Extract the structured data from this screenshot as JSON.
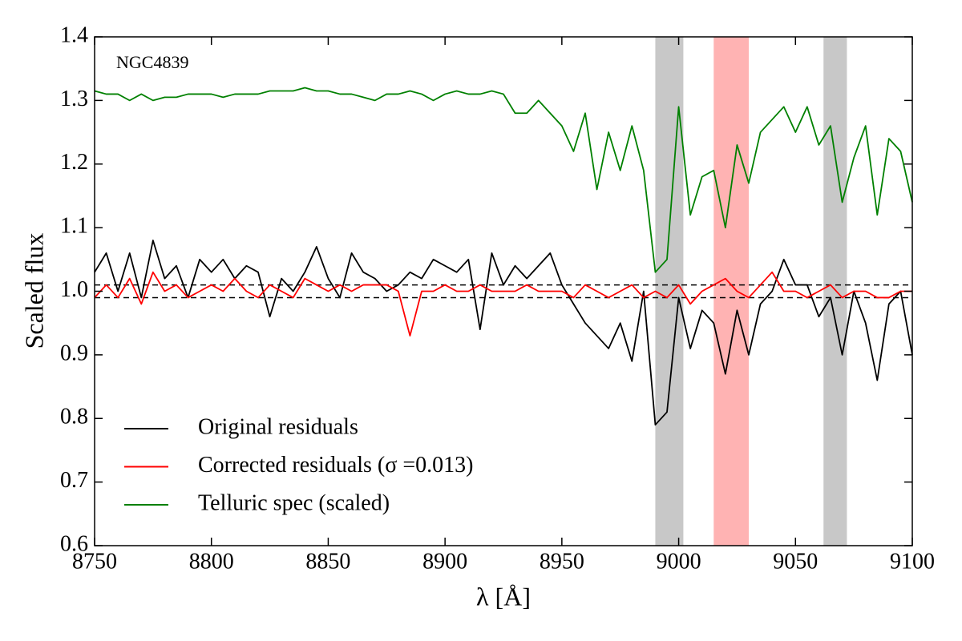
{
  "chart_data": {
    "type": "line",
    "annotation": "NGC4839",
    "xlabel": "λ [Å]",
    "ylabel": "Scaled flux",
    "x": [
      8750,
      8755,
      8760,
      8765,
      8770,
      8775,
      8780,
      8785,
      8790,
      8795,
      8800,
      8805,
      8810,
      8815,
      8820,
      8825,
      8830,
      8835,
      8840,
      8845,
      8850,
      8855,
      8860,
      8865,
      8870,
      8875,
      8880,
      8885,
      8890,
      8895,
      8900,
      8905,
      8910,
      8915,
      8920,
      8925,
      8930,
      8935,
      8940,
      8945,
      8950,
      8955,
      8960,
      8965,
      8970,
      8975,
      8980,
      8985,
      8990,
      8995,
      9000,
      9005,
      9010,
      9015,
      9020,
      9025,
      9030,
      9035,
      9040,
      9045,
      9050,
      9055,
      9060,
      9065,
      9070,
      9075,
      9080,
      9085,
      9090,
      9095,
      9100
    ],
    "series": [
      {
        "name": "Original residuals",
        "color": "#000000",
        "values": [
          1.03,
          1.06,
          1.0,
          1.06,
          0.99,
          1.08,
          1.02,
          1.04,
          0.99,
          1.05,
          1.03,
          1.05,
          1.02,
          1.04,
          1.03,
          0.96,
          1.02,
          1.0,
          1.03,
          1.07,
          1.02,
          0.99,
          1.06,
          1.03,
          1.02,
          1.0,
          1.01,
          1.03,
          1.02,
          1.05,
          1.04,
          1.03,
          1.05,
          0.94,
          1.06,
          1.01,
          1.04,
          1.02,
          1.04,
          1.06,
          1.01,
          0.98,
          0.95,
          0.93,
          0.91,
          0.95,
          0.89,
          1.0,
          0.79,
          0.81,
          0.99,
          0.91,
          0.97,
          0.95,
          0.87,
          0.97,
          0.9,
          0.98,
          1.0,
          1.05,
          1.01,
          1.01,
          0.96,
          0.99,
          0.9,
          1.0,
          0.95,
          0.86,
          0.98,
          1.0,
          0.9
        ]
      },
      {
        "name": "Corrected residuals (σ =0.013)",
        "color": "#ff0000",
        "values": [
          0.99,
          1.01,
          0.99,
          1.02,
          0.98,
          1.03,
          1.0,
          1.01,
          0.99,
          1.0,
          1.01,
          1.0,
          1.02,
          1.0,
          0.99,
          1.01,
          1.0,
          0.99,
          1.02,
          1.01,
          1.0,
          1.01,
          1.0,
          1.01,
          1.01,
          1.01,
          1.0,
          0.93,
          1.0,
          1.0,
          1.01,
          1.0,
          1.0,
          1.01,
          1.0,
          1.0,
          1.0,
          1.01,
          1.0,
          1.0,
          1.0,
          0.99,
          1.01,
          1.0,
          0.99,
          1.0,
          1.01,
          0.99,
          1.0,
          0.99,
          1.01,
          0.98,
          1.0,
          1.01,
          1.02,
          1.0,
          0.99,
          1.01,
          1.03,
          1.0,
          1.0,
          0.99,
          1.0,
          1.01,
          0.99,
          1.0,
          1.0,
          0.99,
          0.99,
          1.0,
          1.0
        ]
      },
      {
        "name": "Telluric spec (scaled)",
        "color": "#008000",
        "values": [
          1.315,
          1.31,
          1.31,
          1.3,
          1.31,
          1.3,
          1.305,
          1.305,
          1.31,
          1.31,
          1.31,
          1.305,
          1.31,
          1.31,
          1.31,
          1.315,
          1.315,
          1.315,
          1.32,
          1.315,
          1.315,
          1.31,
          1.31,
          1.305,
          1.3,
          1.31,
          1.31,
          1.315,
          1.31,
          1.3,
          1.31,
          1.315,
          1.31,
          1.31,
          1.315,
          1.31,
          1.28,
          1.28,
          1.3,
          1.28,
          1.26,
          1.22,
          1.28,
          1.16,
          1.25,
          1.19,
          1.26,
          1.19,
          1.03,
          1.05,
          1.29,
          1.12,
          1.18,
          1.19,
          1.1,
          1.23,
          1.17,
          1.25,
          1.27,
          1.29,
          1.25,
          1.29,
          1.23,
          1.26,
          1.14,
          1.21,
          1.26,
          1.12,
          1.24,
          1.22,
          1.14
        ]
      }
    ],
    "spans": [
      {
        "range": [
          8990,
          9002
        ],
        "color": "#c8c8c8"
      },
      {
        "range": [
          9015,
          9030
        ],
        "color": "#ffb3b3"
      },
      {
        "range": [
          9062,
          9072
        ],
        "color": "#c8c8c8"
      }
    ],
    "hlines": [
      1.01,
      0.99
    ],
    "xlim": [
      8750,
      9100
    ],
    "xticks": [
      8750,
      8800,
      8850,
      8900,
      8950,
      9000,
      9050,
      9100
    ],
    "ylim": [
      0.6,
      1.4
    ],
    "yticks": [
      0.6,
      0.7,
      0.8,
      0.9,
      {
        "value": 1,
        "label": "1.0"
      },
      1.1,
      1.2,
      1.3,
      1.4
    ],
    "legend": "lower left"
  }
}
